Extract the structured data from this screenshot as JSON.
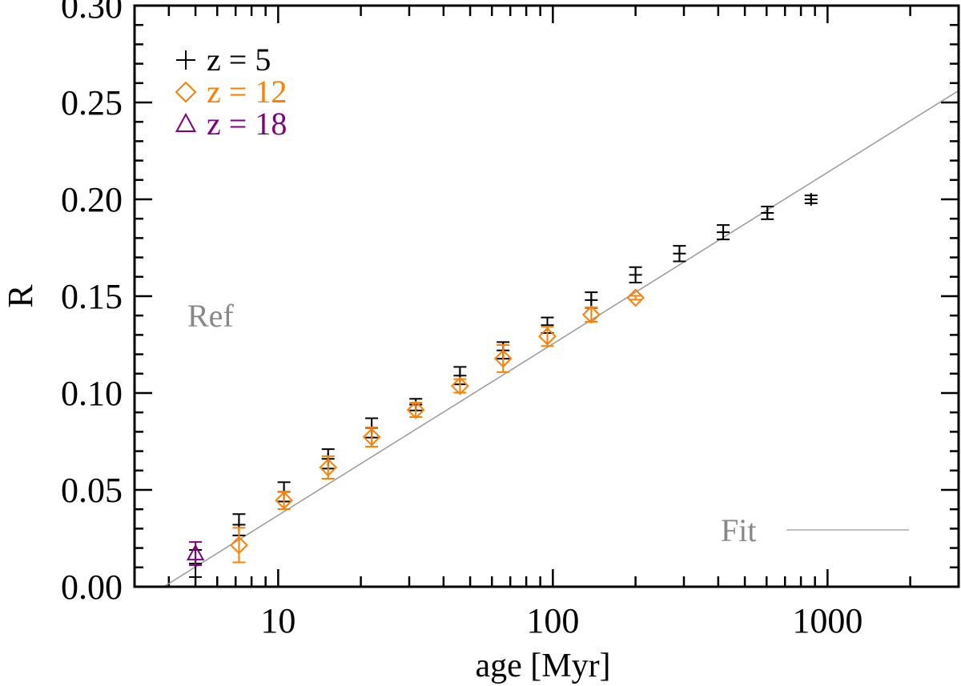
{
  "chart_data": {
    "type": "scatter",
    "xlabel": "age [Myr]",
    "ylabel": "R",
    "xscale": "log",
    "xlim": [
      3,
      3000
    ],
    "ylim": [
      0.0,
      0.3
    ],
    "xticks": [
      10,
      100,
      1000
    ],
    "xtick_labels": [
      "10",
      "100",
      "1000"
    ],
    "yticks": [
      0.0,
      0.05,
      0.1,
      0.15,
      0.2,
      0.25,
      0.3
    ],
    "ytick_labels": [
      "0.00",
      "0.05",
      "0.10",
      "0.15",
      "0.20",
      "0.25",
      "0.30"
    ],
    "grid": false,
    "legend_placement": "top-left",
    "series": [
      {
        "name": "z = 5",
        "marker": "plus",
        "color": "#000000",
        "x": [
          5.0,
          7.2,
          10.5,
          15.2,
          21.9,
          31.7,
          45.9,
          65.9,
          95.5,
          138,
          200,
          289,
          417,
          604,
          871
        ],
        "y": [
          0.012,
          0.032,
          0.049,
          0.066,
          0.082,
          0.094,
          0.109,
          0.122,
          0.135,
          0.148,
          0.161,
          0.172,
          0.183,
          0.193,
          0.2
        ],
        "yerr": [
          0.007,
          0.0055,
          0.005,
          0.005,
          0.005,
          0.003,
          0.0045,
          0.0043,
          0.004,
          0.004,
          0.004,
          0.004,
          0.0037,
          0.0033,
          0.002
        ]
      },
      {
        "name": "z = 12",
        "marker": "diamond",
        "color": "#FF7F00",
        "x": [
          7.2,
          10.5,
          15.2,
          21.9,
          31.7,
          45.9,
          65.9,
          95.5,
          138,
          200
        ],
        "y": [
          0.0215,
          0.0446,
          0.0616,
          0.0773,
          0.0913,
          0.1037,
          0.1178,
          0.1293,
          0.1405,
          0.1492
        ],
        "yerr": [
          0.0089,
          0.0045,
          0.0058,
          0.005,
          0.0037,
          0.0035,
          0.007,
          0.005,
          0.0037,
          0.001
        ]
      },
      {
        "name": "z = 18",
        "marker": "triangle",
        "color": "#800080",
        "x": [
          5.0
        ],
        "y": [
          0.0171
        ],
        "yerr": [
          0.006
        ]
      }
    ],
    "fit_line": {
      "name": "Fit",
      "color": "#999999",
      "slope_per_dex": 0.0885,
      "zero_at_age": 3.83
    },
    "annotations": [
      {
        "text": "Ref",
        "color": "#888888"
      }
    ]
  }
}
